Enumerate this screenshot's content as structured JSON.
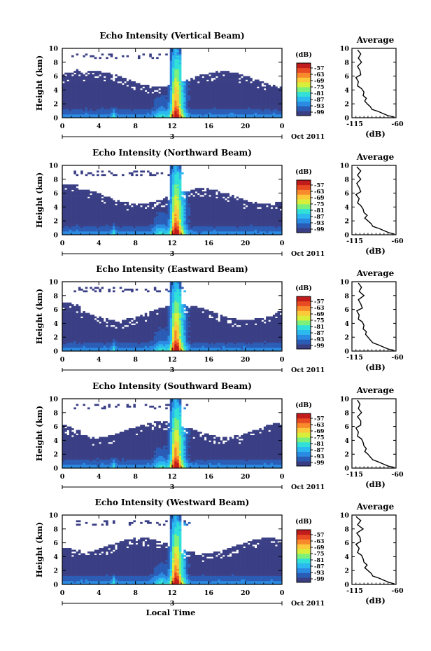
{
  "figure": {
    "date_label": "Oct 2011",
    "date_tick": "3",
    "xlabel": "Local Time",
    "average_title": "Average",
    "average_xlabel": "(dB)",
    "colorbar_label": "(dB)"
  },
  "chart_data": [
    {
      "type": "heatmap",
      "title": "Echo Intensity (Vertical Beam)",
      "xlabel": "",
      "ylabel": "Height (km)",
      "xlim": [
        0,
        24
      ],
      "ylim": [
        0,
        10
      ],
      "x_ticks": [
        "0",
        "4",
        "8",
        "12",
        "16",
        "20",
        "0"
      ],
      "y_ticks": [
        "0",
        "2",
        "4",
        "6",
        "8",
        "10"
      ],
      "colorbar": {
        "label": "(dB)",
        "ticks": [
          "-57",
          "-63",
          "-69",
          "-75",
          "-81",
          "-87",
          "-93",
          "-99"
        ]
      }
    },
    {
      "type": "line",
      "title": "Average",
      "xlabel": "(dB)",
      "ylabel": "",
      "xlim": [
        -115,
        -60
      ],
      "ylim": [
        0,
        10
      ],
      "x_ticks": [
        "-115",
        "-60"
      ],
      "y_ticks": [
        "0",
        "2",
        "4",
        "6",
        "8",
        "10"
      ],
      "series": [
        {
          "x": [
            -108,
            -104,
            -107,
            -103,
            -108,
            -105,
            -104,
            -110,
            -107,
            -108,
            -103,
            -100,
            -101,
            -97,
            -99,
            -96,
            -92,
            -90,
            -82,
            -76,
            -70,
            -62
          ],
          "y": [
            9.8,
            9.2,
            8.6,
            8.0,
            7.4,
            6.8,
            6.2,
            5.8,
            5.2,
            4.6,
            4.2,
            3.7,
            3.2,
            2.8,
            2.4,
            2.0,
            1.6,
            1.2,
            0.9,
            0.6,
            0.3,
            0.1
          ]
        }
      ]
    },
    {
      "type": "heatmap",
      "title": "Echo Intensity (Northward Beam)",
      "xlabel": "",
      "ylabel": "Height (km)",
      "xlim": [
        0,
        24
      ],
      "ylim": [
        0,
        10
      ],
      "x_ticks": [
        "0",
        "4",
        "8",
        "12",
        "16",
        "20",
        "0"
      ],
      "y_ticks": [
        "0",
        "2",
        "4",
        "6",
        "8",
        "10"
      ],
      "colorbar": {
        "label": "(dB)",
        "ticks": [
          "-57",
          "-63",
          "-69",
          "-75",
          "-81",
          "-87",
          "-93",
          "-99"
        ]
      }
    },
    {
      "type": "line",
      "title": "Average",
      "xlabel": "(dB)",
      "ylabel": "",
      "xlim": [
        -115,
        -60
      ],
      "ylim": [
        0,
        10
      ],
      "x_ticks": [
        "-115",
        "-60"
      ],
      "y_ticks": [
        "0",
        "2",
        "4",
        "6",
        "8",
        "10"
      ],
      "series": [
        {
          "x": [
            -109,
            -104,
            -108,
            -104,
            -109,
            -106,
            -104,
            -110,
            -106,
            -108,
            -104,
            -101,
            -100,
            -96,
            -99,
            -95,
            -91,
            -89,
            -81,
            -75,
            -69,
            -62
          ],
          "y": [
            9.8,
            9.2,
            8.6,
            8.0,
            7.4,
            6.8,
            6.2,
            5.8,
            5.2,
            4.6,
            4.2,
            3.7,
            3.2,
            2.8,
            2.4,
            2.0,
            1.6,
            1.2,
            0.9,
            0.6,
            0.3,
            0.1
          ]
        }
      ]
    },
    {
      "type": "heatmap",
      "title": "Echo Intensity (Eastward Beam)",
      "xlabel": "",
      "ylabel": "Height (km)",
      "xlim": [
        0,
        24
      ],
      "ylim": [
        0,
        10
      ],
      "x_ticks": [
        "0",
        "4",
        "8",
        "12",
        "16",
        "20",
        "0"
      ],
      "y_ticks": [
        "0",
        "2",
        "4",
        "6",
        "8",
        "10"
      ],
      "colorbar": {
        "label": "(dB)",
        "ticks": [
          "-57",
          "-63",
          "-69",
          "-75",
          "-81",
          "-87",
          "-93",
          "-99"
        ]
      }
    },
    {
      "type": "line",
      "title": "Average",
      "xlabel": "(dB)",
      "ylabel": "",
      "xlim": [
        -115,
        -60
      ],
      "ylim": [
        0,
        10
      ],
      "x_ticks": [
        "-115",
        "-60"
      ],
      "y_ticks": [
        "0",
        "2",
        "4",
        "6",
        "8",
        "10"
      ],
      "series": [
        {
          "x": [
            -107,
            -103,
            -106,
            -100,
            -107,
            -104,
            -102,
            -109,
            -106,
            -107,
            -102,
            -100,
            -101,
            -97,
            -98,
            -95,
            -92,
            -89,
            -82,
            -76,
            -70,
            -62
          ],
          "y": [
            9.8,
            9.2,
            8.6,
            8.0,
            7.4,
            6.8,
            6.2,
            5.8,
            5.2,
            4.6,
            4.2,
            3.7,
            3.2,
            2.8,
            2.4,
            2.0,
            1.6,
            1.2,
            0.9,
            0.6,
            0.3,
            0.1
          ]
        }
      ]
    },
    {
      "type": "heatmap",
      "title": "Echo Intensity (Southward Beam)",
      "xlabel": "",
      "ylabel": "Height (km)",
      "xlim": [
        0,
        24
      ],
      "ylim": [
        0,
        10
      ],
      "x_ticks": [
        "0",
        "4",
        "8",
        "12",
        "16",
        "20",
        "0"
      ],
      "y_ticks": [
        "0",
        "2",
        "4",
        "6",
        "8",
        "10"
      ],
      "colorbar": {
        "label": "(dB)",
        "ticks": [
          "-57",
          "-63",
          "-69",
          "-75",
          "-81",
          "-87",
          "-93",
          "-99"
        ]
      }
    },
    {
      "type": "line",
      "title": "Average",
      "xlabel": "(dB)",
      "ylabel": "",
      "xlim": [
        -115,
        -60
      ],
      "ylim": [
        0,
        10
      ],
      "x_ticks": [
        "-115",
        "-60"
      ],
      "y_ticks": [
        "0",
        "2",
        "4",
        "6",
        "8",
        "10"
      ],
      "series": [
        {
          "x": [
            -108,
            -105,
            -107,
            -103,
            -108,
            -104,
            -104,
            -110,
            -107,
            -108,
            -103,
            -101,
            -100,
            -97,
            -99,
            -95,
            -92,
            -89,
            -82,
            -76,
            -70,
            -62
          ],
          "y": [
            9.8,
            9.2,
            8.6,
            8.0,
            7.4,
            6.8,
            6.2,
            5.8,
            5.2,
            4.6,
            4.2,
            3.7,
            3.2,
            2.8,
            2.4,
            2.0,
            1.6,
            1.2,
            0.9,
            0.6,
            0.3,
            0.1
          ]
        }
      ]
    },
    {
      "type": "heatmap",
      "title": "Echo Intensity (Westward Beam)",
      "xlabel": "",
      "ylabel": "Height (km)",
      "xlim": [
        0,
        24
      ],
      "ylim": [
        0,
        10
      ],
      "x_ticks": [
        "0",
        "4",
        "8",
        "12",
        "16",
        "20",
        "0"
      ],
      "y_ticks": [
        "0",
        "2",
        "4",
        "6",
        "8",
        "10"
      ],
      "colorbar": {
        "label": "(dB)",
        "ticks": [
          "-57",
          "-63",
          "-69",
          "-75",
          "-81",
          "-87",
          "-93",
          "-99"
        ]
      }
    },
    {
      "type": "line",
      "title": "Average",
      "xlabel": "(dB)",
      "ylabel": "",
      "xlim": [
        -115,
        -60
      ],
      "ylim": [
        0,
        10
      ],
      "x_ticks": [
        "-115",
        "-60"
      ],
      "y_ticks": [
        "0",
        "2",
        "4",
        "6",
        "8",
        "10"
      ],
      "series": [
        {
          "x": [
            -110,
            -104,
            -108,
            -101,
            -109,
            -105,
            -104,
            -110,
            -106,
            -108,
            -103,
            -101,
            -100,
            -96,
            -99,
            -95,
            -91,
            -89,
            -81,
            -75,
            -69,
            -62
          ],
          "y": [
            9.8,
            9.2,
            8.6,
            8.0,
            7.4,
            6.8,
            6.2,
            5.8,
            5.2,
            4.6,
            4.2,
            3.7,
            3.2,
            2.8,
            2.4,
            2.0,
            1.6,
            1.2,
            0.9,
            0.6,
            0.3,
            0.1
          ]
        }
      ]
    }
  ],
  "colors": {
    "colormap": [
      "#3a3f85",
      "#2b5cb5",
      "#2a8be3",
      "#2bb9f0",
      "#31e0d8",
      "#7df07a",
      "#d7ef3a",
      "#fbc93a",
      "#f88a2c",
      "#e84a22",
      "#c11b1b"
    ]
  }
}
